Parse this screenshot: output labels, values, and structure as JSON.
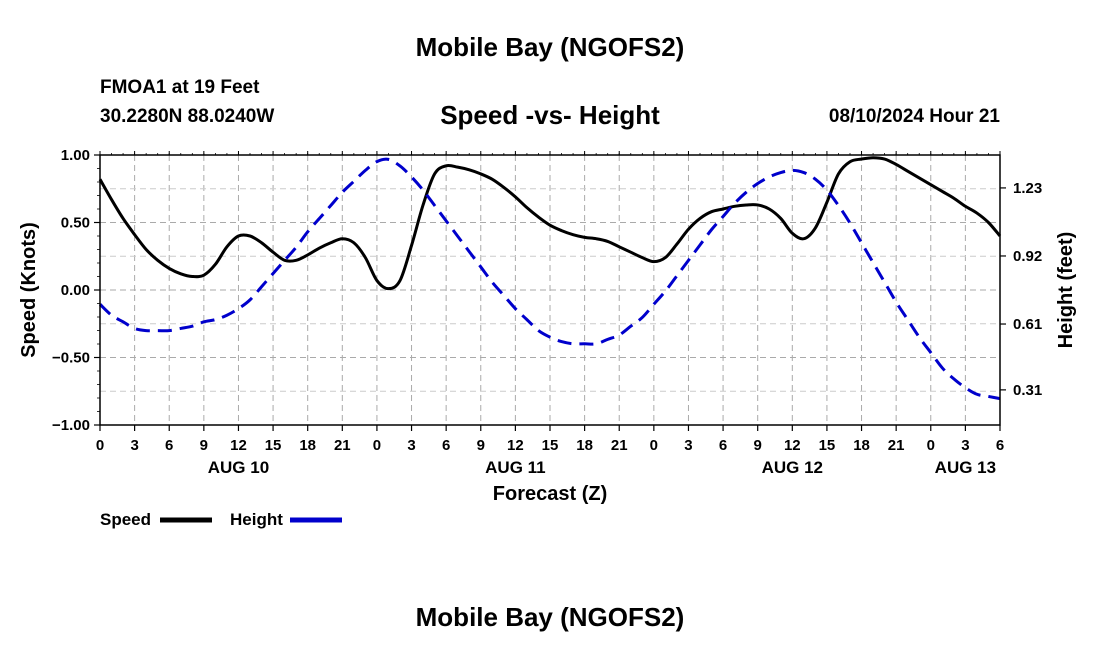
{
  "page": {
    "title_top": "Mobile Bay (NGOFS2)",
    "title_bottom": "Mobile Bay (NGOFS2)",
    "station_line": "FMOA1 at 19 Feet",
    "coords_line": "30.2280N  88.0240W",
    "timestamp": "08/10/2024 Hour 21"
  },
  "chart_data": {
    "type": "line",
    "title": "Speed -vs- Height",
    "xlabel": "Forecast (Z)",
    "ylabel": "Speed (Knots)",
    "y2label": "Height (feet)",
    "xlim": [
      0,
      78
    ],
    "ylim": [
      -1.0,
      1.0
    ],
    "y2lim": [
      0.15,
      1.38
    ],
    "grid": true,
    "legend_position": "bottom-left",
    "x_ticks": [
      0,
      3,
      6,
      9,
      12,
      15,
      18,
      21,
      24,
      27,
      30,
      33,
      36,
      39,
      42,
      45,
      48,
      51,
      54,
      57,
      60,
      63,
      66,
      69,
      72,
      75,
      78
    ],
    "x_tick_labels": [
      "0",
      "3",
      "6",
      "9",
      "12",
      "15",
      "18",
      "21",
      "0",
      "3",
      "6",
      "9",
      "12",
      "15",
      "18",
      "21",
      "0",
      "3",
      "6",
      "9",
      "12",
      "15",
      "18",
      "21",
      "0",
      "3",
      "6"
    ],
    "date_labels": [
      {
        "x": 12,
        "label": "AUG 10"
      },
      {
        "x": 36,
        "label": "AUG 11"
      },
      {
        "x": 60,
        "label": "AUG 12"
      },
      {
        "x": 75,
        "label": "AUG 13"
      }
    ],
    "y_ticks": [
      1.0,
      0.5,
      0.0,
      -0.5,
      -1.0
    ],
    "y_tick_labels": [
      "1.00",
      "0.50",
      "0.00",
      "−0.50",
      "−1.00"
    ],
    "y2_ticks": [
      1.23,
      0.92,
      0.61,
      0.31
    ],
    "y2_tick_labels": [
      "1.23",
      "0.92",
      "0.61",
      "0.31"
    ],
    "series": [
      {
        "name": "Speed",
        "axis": "left",
        "color": "#000000",
        "style": "solid",
        "x": [
          0,
          1,
          2,
          3,
          4,
          5,
          6,
          7,
          8,
          9,
          10,
          11,
          12,
          13,
          14,
          15,
          16,
          17,
          18,
          19,
          20,
          21,
          22,
          23,
          24,
          25,
          26,
          27,
          28,
          29,
          30,
          31,
          32,
          33,
          34,
          35,
          36,
          37,
          38,
          39,
          40,
          41,
          42,
          43,
          44,
          45,
          46,
          47,
          48,
          49,
          50,
          51,
          52,
          53,
          54,
          55,
          56,
          57,
          58,
          59,
          60,
          61,
          62,
          63,
          64,
          65,
          66,
          67,
          68,
          69,
          70,
          71,
          72,
          73,
          74,
          75,
          76,
          77,
          78
        ],
        "values": [
          0.82,
          0.67,
          0.53,
          0.41,
          0.3,
          0.22,
          0.16,
          0.12,
          0.1,
          0.11,
          0.19,
          0.32,
          0.4,
          0.4,
          0.35,
          0.28,
          0.22,
          0.22,
          0.26,
          0.31,
          0.35,
          0.38,
          0.35,
          0.24,
          0.07,
          0.01,
          0.07,
          0.33,
          0.63,
          0.86,
          0.92,
          0.91,
          0.89,
          0.86,
          0.82,
          0.76,
          0.69,
          0.61,
          0.54,
          0.48,
          0.44,
          0.41,
          0.39,
          0.38,
          0.36,
          0.32,
          0.28,
          0.24,
          0.21,
          0.24,
          0.34,
          0.45,
          0.53,
          0.58,
          0.6,
          0.62,
          0.63,
          0.63,
          0.6,
          0.53,
          0.42,
          0.38,
          0.46,
          0.65,
          0.86,
          0.95,
          0.97,
          0.98,
          0.97,
          0.93,
          0.88,
          0.83,
          0.78,
          0.73,
          0.68,
          0.62,
          0.57,
          0.5,
          0.4
        ]
      },
      {
        "name": "Height",
        "axis": "right",
        "color": "#0000cc",
        "style": "dashed",
        "x": [
          0,
          1,
          2,
          3,
          4,
          5,
          6,
          7,
          8,
          9,
          10,
          11,
          12,
          13,
          14,
          15,
          16,
          17,
          18,
          19,
          20,
          21,
          22,
          23,
          24,
          25,
          26,
          27,
          28,
          29,
          30,
          31,
          32,
          33,
          34,
          35,
          36,
          37,
          38,
          39,
          40,
          41,
          42,
          43,
          44,
          45,
          46,
          47,
          48,
          49,
          50,
          51,
          52,
          53,
          54,
          55,
          56,
          57,
          58,
          59,
          60,
          61,
          62,
          63,
          64,
          65,
          66,
          67,
          68,
          69,
          70,
          71,
          72,
          73,
          74,
          75,
          76,
          77,
          78
        ],
        "values": [
          0.7,
          0.65,
          0.62,
          0.59,
          0.58,
          0.58,
          0.58,
          0.59,
          0.6,
          0.62,
          0.63,
          0.65,
          0.68,
          0.72,
          0.78,
          0.84,
          0.9,
          0.96,
          1.03,
          1.09,
          1.15,
          1.21,
          1.26,
          1.31,
          1.35,
          1.36,
          1.33,
          1.28,
          1.22,
          1.15,
          1.08,
          1.01,
          0.94,
          0.87,
          0.8,
          0.74,
          0.68,
          0.63,
          0.58,
          0.55,
          0.53,
          0.52,
          0.52,
          0.52,
          0.54,
          0.56,
          0.6,
          0.64,
          0.7,
          0.76,
          0.83,
          0.9,
          0.97,
          1.04,
          1.1,
          1.16,
          1.21,
          1.25,
          1.28,
          1.3,
          1.31,
          1.3,
          1.27,
          1.22,
          1.15,
          1.07,
          0.98,
          0.89,
          0.8,
          0.71,
          0.63,
          0.55,
          0.48,
          0.41,
          0.36,
          0.32,
          0.29,
          0.28,
          0.27
        ]
      }
    ]
  }
}
